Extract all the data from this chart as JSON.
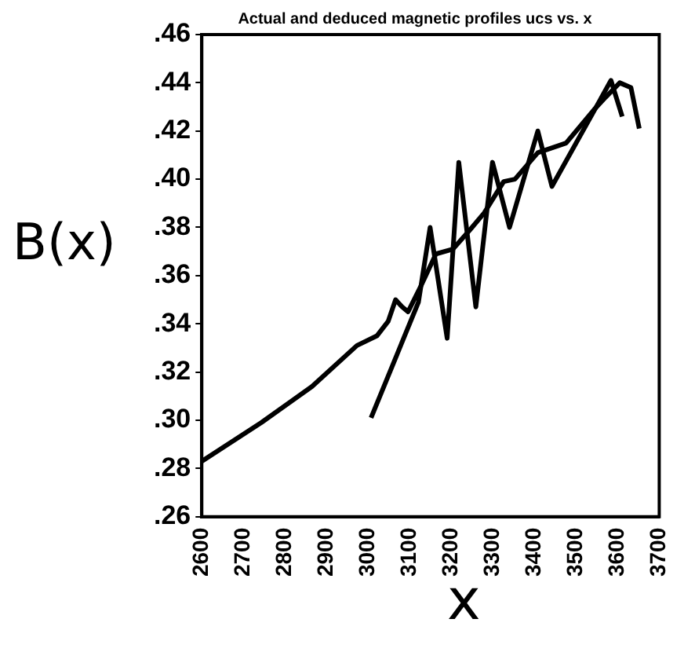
{
  "chart_data": {
    "type": "line",
    "title": "Actual and deduced magnetic profiles ucs vs. x",
    "xlabel": "x",
    "ylabel": "B(x)",
    "xlim": [
      2600,
      3700
    ],
    "xticks": [
      2600,
      2700,
      2800,
      2900,
      3000,
      3100,
      3200,
      3300,
      3400,
      3500,
      3600,
      3700
    ],
    "ylim": [
      0.26,
      0.46
    ],
    "yticks": [
      {
        "value": 0.26,
        "label": ".26"
      },
      {
        "value": 0.28,
        "label": ".28"
      },
      {
        "value": 0.3,
        "label": ".30"
      },
      {
        "value": 0.32,
        "label": ".32"
      },
      {
        "value": 0.34,
        "label": ".34"
      },
      {
        "value": 0.36,
        "label": ".36"
      },
      {
        "value": 0.38,
        "label": ".38"
      },
      {
        "value": 0.4,
        "label": ".40"
      },
      {
        "value": 0.42,
        "label": ".42"
      },
      {
        "value": 0.44,
        "label": ".44"
      },
      {
        "value": 0.46,
        "label": ".46"
      }
    ],
    "grid": false,
    "legend": false,
    "marker": "none",
    "line_style": "solid",
    "series": [
      {
        "color": "#000000",
        "x": [
          2600,
          2743,
          2865,
          2973,
          3021,
          3048,
          3066,
          3082,
          3096,
          3125,
          3163,
          3204,
          3245,
          3279,
          3326,
          3353,
          3408,
          3476,
          3544,
          3571,
          3605,
          3632,
          3652
        ],
        "values": [
          0.283,
          0.299,
          0.314,
          0.331,
          0.335,
          0.341,
          0.35,
          0.347,
          0.345,
          0.355,
          0.369,
          0.371,
          0.379,
          0.386,
          0.399,
          0.4,
          0.411,
          0.415,
          0.429,
          0.434,
          0.44,
          0.438,
          0.421
        ]
      },
      {
        "color": "#000000",
        "x": [
          3007,
          3121,
          3149,
          3190,
          3218,
          3259,
          3299,
          3340,
          3408,
          3442,
          3584,
          3611
        ],
        "values": [
          0.301,
          0.349,
          0.38,
          0.334,
          0.407,
          0.347,
          0.407,
          0.38,
          0.42,
          0.397,
          0.441,
          0.426
        ]
      }
    ]
  }
}
